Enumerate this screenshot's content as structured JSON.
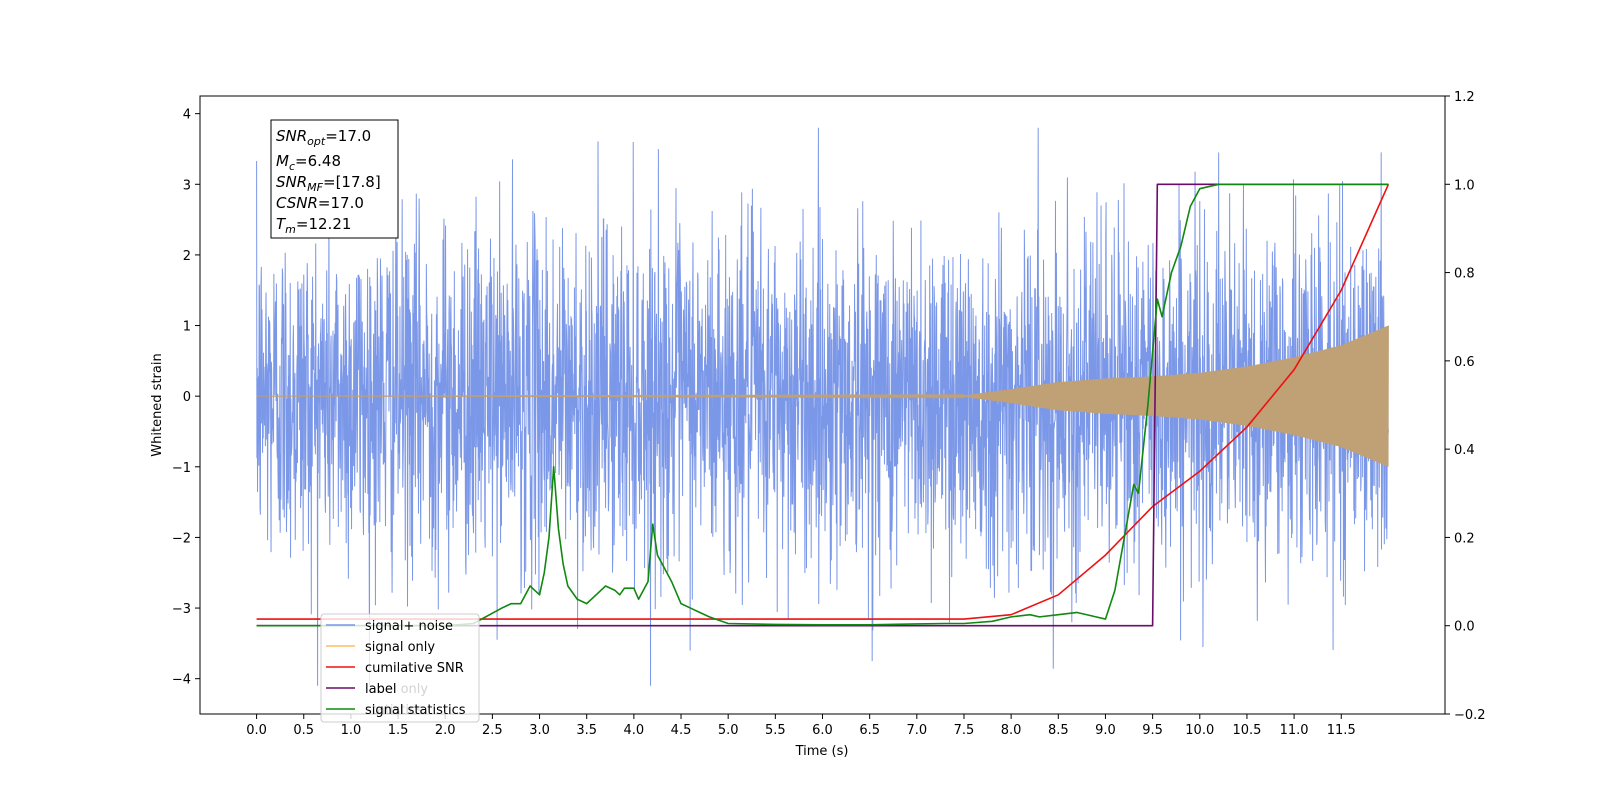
{
  "chart_data": {
    "type": "line",
    "xlabel": "Time (s)",
    "ylabel_left": "Whitened strain",
    "xlim": [
      -0.6,
      12.6
    ],
    "ylim_left": [
      -4.5,
      4.25
    ],
    "ylim_right": [
      -0.2,
      1.2
    ],
    "x_ticks": [
      "0.0",
      "0.5",
      "1.0",
      "1.5",
      "2.0",
      "2.5",
      "3.0",
      "3.5",
      "4.0",
      "4.5",
      "5.0",
      "5.5",
      "6.0",
      "6.5",
      "7.0",
      "7.5",
      "8.0",
      "8.5",
      "9.0",
      "9.5",
      "10.0",
      "10.5",
      "11.0",
      "11.5"
    ],
    "y_ticks_left": [
      "4",
      "3",
      "2",
      "1",
      "0",
      "−1",
      "−2",
      "−3",
      "−4"
    ],
    "y_ticks_right": [
      "1.2",
      "1.0",
      "0.8",
      "0.6",
      "0.4",
      "0.2",
      "0.0",
      "−0.2"
    ],
    "legend_position": "lower-left",
    "legend": [
      "signal+ noise",
      "signal only",
      "cumilative SNR",
      "label",
      "signal statistics"
    ],
    "legend_ghost": [
      "label only",
      "statistics"
    ],
    "info_box": {
      "snr_opt": {
        "base": "SNR",
        "sub": "opt",
        "value": "=17.0"
      },
      "mc": {
        "base": "M",
        "sub": "c",
        "value": "=6.48"
      },
      "snr_mf": {
        "base": "SNR",
        "sub": "MF",
        "value": "=[17.8]"
      },
      "csnr": {
        "base": "CSNR",
        "value": "=17.0"
      },
      "tm": {
        "base": "T",
        "sub": "m",
        "value": "=12.21"
      }
    },
    "series": [
      {
        "name": "signal+ noise",
        "axis": "left",
        "color": "#7895e8",
        "kind": "noise",
        "x_range": [
          0.0,
          12.0
        ],
        "amplitude_envelope": 1.2,
        "peak_range": [
          -4.1,
          3.8
        ]
      },
      {
        "name": "signal only",
        "axis": "left",
        "color": "#c0a075",
        "kind": "chirp",
        "x_range": [
          0.0,
          12.0
        ],
        "envelope": {
          "x": [
            0,
            7.5,
            8.0,
            8.5,
            9.0,
            9.5,
            10.0,
            10.5,
            11.0,
            11.5,
            12.0
          ],
          "y": [
            0.0,
            0.01,
            0.1,
            0.2,
            0.25,
            0.28,
            0.33,
            0.42,
            0.55,
            0.72,
            1.0
          ]
        }
      },
      {
        "name": "cumilative SNR",
        "axis": "right",
        "color": "#ee1111",
        "x": [
          0,
          7.0,
          7.5,
          8.0,
          8.5,
          9.0,
          9.5,
          10.0,
          10.5,
          11.0,
          11.5,
          12.0
        ],
        "y": [
          0.015,
          0.015,
          0.015,
          0.025,
          0.07,
          0.16,
          0.27,
          0.35,
          0.45,
          0.58,
          0.76,
          1.0
        ]
      },
      {
        "name": "label",
        "axis": "right",
        "color": "#6a0d6a",
        "x": [
          0,
          9.5,
          9.55,
          12.0
        ],
        "y": [
          0.0,
          0.0,
          1.0,
          1.0
        ]
      },
      {
        "name": "signal statistics",
        "axis": "right",
        "color": "#118811",
        "x": [
          0,
          2.0,
          2.3,
          2.6,
          2.7,
          2.8,
          2.9,
          2.95,
          3.0,
          3.05,
          3.1,
          3.15,
          3.2,
          3.25,
          3.3,
          3.4,
          3.5,
          3.6,
          3.7,
          3.8,
          3.85,
          3.9,
          4.0,
          4.05,
          4.1,
          4.15,
          4.2,
          4.25,
          4.3,
          4.4,
          4.5,
          4.6,
          4.7,
          4.8,
          5.0,
          5.5,
          6.0,
          6.5,
          7.0,
          7.3,
          7.5,
          7.8,
          8.0,
          8.2,
          8.3,
          8.5,
          8.7,
          8.9,
          9.0,
          9.1,
          9.2,
          9.3,
          9.35,
          9.4,
          9.45,
          9.5,
          9.55,
          9.6,
          9.7,
          9.8,
          9.9,
          10.0,
          10.2,
          12.0
        ],
        "y": [
          0,
          0,
          0.005,
          0.04,
          0.05,
          0.05,
          0.09,
          0.08,
          0.07,
          0.12,
          0.2,
          0.36,
          0.22,
          0.14,
          0.09,
          0.06,
          0.05,
          0.07,
          0.09,
          0.08,
          0.07,
          0.085,
          0.085,
          0.06,
          0.08,
          0.1,
          0.23,
          0.16,
          0.14,
          0.1,
          0.05,
          0.04,
          0.03,
          0.02,
          0.005,
          0.003,
          0.002,
          0.002,
          0.004,
          0.005,
          0.005,
          0.01,
          0.02,
          0.025,
          0.02,
          0.025,
          0.03,
          0.02,
          0.015,
          0.08,
          0.2,
          0.32,
          0.3,
          0.4,
          0.5,
          0.62,
          0.74,
          0.7,
          0.8,
          0.86,
          0.95,
          0.99,
          1.0,
          1.0
        ]
      }
    ]
  }
}
